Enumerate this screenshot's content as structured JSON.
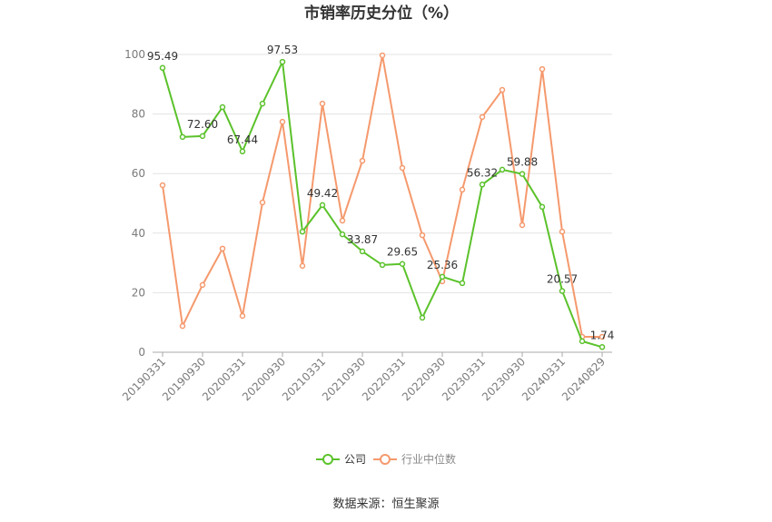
{
  "source": "数据来源：恒生聚源",
  "chart_data": {
    "type": "line",
    "title": "市销率历史分位（%）",
    "x_tick_labels": [
      "20190331",
      "20190930",
      "20200331",
      "20200930",
      "20210331",
      "20210930",
      "20220331",
      "20220930",
      "20230331",
      "20230930",
      "20240331",
      "20240829"
    ],
    "yticks": [
      0,
      20,
      40,
      60,
      80,
      100
    ],
    "ylim": [
      0,
      100
    ],
    "grid": true,
    "legend_position": "bottom",
    "series": [
      {
        "name": "公司",
        "color": "#5bc22b",
        "values": [
          95.49,
          72.3,
          72.6,
          82.3,
          67.44,
          83.5,
          97.53,
          40.5,
          49.42,
          39.6,
          33.87,
          29.3,
          29.65,
          11.6,
          25.36,
          23.2,
          56.32,
          61.3,
          59.88,
          48.8,
          20.57,
          3.7,
          1.74
        ],
        "data_labels": [
          "95.49",
          null,
          "72.60",
          null,
          "67.44",
          null,
          "97.53",
          null,
          "49.42",
          null,
          "33.87",
          null,
          "29.65",
          null,
          "25.36",
          null,
          "56.32",
          null,
          "59.88",
          null,
          "20.57",
          null,
          "1.74"
        ]
      },
      {
        "name": "行业中位数",
        "color": "#f5996d",
        "values": [
          56.1,
          8.8,
          22.6,
          34.8,
          12.2,
          50.3,
          77.4,
          29.0,
          83.5,
          44.2,
          64.3,
          99.7,
          61.9,
          39.3,
          23.8,
          54.6,
          79.0,
          88.1,
          42.7,
          95.1,
          40.5,
          5.2,
          5.2
        ]
      }
    ]
  }
}
